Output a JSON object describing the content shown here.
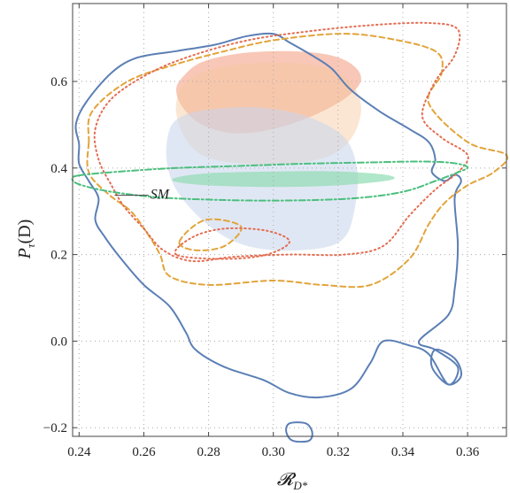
{
  "chart_data": {
    "type": "contour",
    "xlabel": "𝓡",
    "xlabel_sub": "D*",
    "ylabel": "P",
    "ylabel_sub": "τ",
    "ylabel_suffix": "(D)",
    "xlim": [
      0.238,
      0.372
    ],
    "ylim": [
      -0.22,
      0.78
    ],
    "xticks": [
      0.24,
      0.26,
      0.28,
      0.3,
      0.32,
      0.34,
      0.36
    ],
    "yticks": [
      -0.2,
      0.0,
      0.2,
      0.4,
      0.6
    ],
    "xtick_labels": [
      "0.24",
      "0.26",
      "0.28",
      "0.30",
      "0.32",
      "0.34",
      "0.36"
    ],
    "ytick_labels": [
      "−0.2",
      "0.0",
      "0.2",
      "0.4",
      "0.6"
    ],
    "grid": true,
    "annotations": [
      {
        "text": "SM",
        "point": [
          0.251,
          0.337
        ],
        "label_at": [
          0.262,
          0.337
        ]
      }
    ],
    "filled_regions": [
      {
        "color": "#f4a58a",
        "opacity": 0.62,
        "points": [
          [
            0.272,
            0.61
          ],
          [
            0.278,
            0.645
          ],
          [
            0.29,
            0.665
          ],
          [
            0.305,
            0.67
          ],
          [
            0.318,
            0.66
          ],
          [
            0.325,
            0.635
          ],
          [
            0.327,
            0.6
          ],
          [
            0.322,
            0.56
          ],
          [
            0.312,
            0.52
          ],
          [
            0.3,
            0.49
          ],
          [
            0.288,
            0.48
          ],
          [
            0.278,
            0.5
          ],
          [
            0.272,
            0.54
          ],
          [
            0.27,
            0.58
          ]
        ]
      },
      {
        "color": "#f6c89d",
        "opacity": 0.45,
        "points": [
          [
            0.27,
            0.55
          ],
          [
            0.275,
            0.61
          ],
          [
            0.29,
            0.64
          ],
          [
            0.31,
            0.64
          ],
          [
            0.322,
            0.61
          ],
          [
            0.327,
            0.55
          ],
          [
            0.325,
            0.48
          ],
          [
            0.318,
            0.43
          ],
          [
            0.305,
            0.41
          ],
          [
            0.29,
            0.41
          ],
          [
            0.278,
            0.43
          ],
          [
            0.272,
            0.48
          ]
        ]
      },
      {
        "color": "#c9d5ec",
        "opacity": 0.58,
        "points": [
          [
            0.268,
            0.49
          ],
          [
            0.272,
            0.52
          ],
          [
            0.28,
            0.535
          ],
          [
            0.295,
            0.54
          ],
          [
            0.31,
            0.52
          ],
          [
            0.322,
            0.47
          ],
          [
            0.326,
            0.39
          ],
          [
            0.325,
            0.3
          ],
          [
            0.322,
            0.24
          ],
          [
            0.315,
            0.215
          ],
          [
            0.3,
            0.21
          ],
          [
            0.288,
            0.23
          ],
          [
            0.278,
            0.28
          ],
          [
            0.27,
            0.35
          ],
          [
            0.267,
            0.42
          ]
        ]
      },
      {
        "color": "#92dcb4",
        "opacity": 0.72,
        "points": [
          [
            0.27,
            0.378
          ],
          [
            0.28,
            0.388
          ],
          [
            0.3,
            0.392
          ],
          [
            0.32,
            0.392
          ],
          [
            0.335,
            0.384
          ],
          [
            0.336,
            0.372
          ],
          [
            0.32,
            0.36
          ],
          [
            0.3,
            0.356
          ],
          [
            0.28,
            0.36
          ],
          [
            0.27,
            0.368
          ]
        ]
      }
    ],
    "contours": [
      {
        "style": "solid",
        "color": "#5b7fb5",
        "stroke": 2,
        "points": [
          [
            0.24,
            0.455
          ],
          [
            0.239,
            0.5
          ],
          [
            0.242,
            0.55
          ],
          [
            0.25,
            0.62
          ],
          [
            0.258,
            0.655
          ],
          [
            0.27,
            0.67
          ],
          [
            0.282,
            0.685
          ],
          [
            0.292,
            0.705
          ],
          [
            0.3,
            0.71
          ],
          [
            0.305,
            0.69
          ],
          [
            0.312,
            0.66
          ],
          [
            0.318,
            0.63
          ],
          [
            0.324,
            0.58
          ],
          [
            0.333,
            0.53
          ],
          [
            0.342,
            0.49
          ],
          [
            0.348,
            0.46
          ],
          [
            0.35,
            0.42
          ],
          [
            0.349,
            0.39
          ],
          [
            0.353,
            0.37
          ],
          [
            0.356,
            0.385
          ],
          [
            0.358,
            0.37
          ],
          [
            0.356,
            0.33
          ],
          [
            0.357,
            0.22
          ],
          [
            0.356,
            0.12
          ],
          [
            0.354,
            0.06
          ],
          [
            0.345,
            0.0
          ],
          [
            0.35,
            -0.02
          ],
          [
            0.357,
            -0.06
          ],
          [
            0.354,
            -0.1
          ],
          [
            0.348,
            -0.03
          ],
          [
            0.342,
            -0.01
          ],
          [
            0.334,
            0.0
          ],
          [
            0.33,
            -0.05
          ],
          [
            0.324,
            -0.11
          ],
          [
            0.314,
            -0.13
          ],
          [
            0.305,
            -0.12
          ],
          [
            0.297,
            -0.09
          ],
          [
            0.285,
            -0.06
          ],
          [
            0.276,
            -0.02
          ],
          [
            0.273,
            0.02
          ],
          [
            0.268,
            0.08
          ],
          [
            0.26,
            0.13
          ],
          [
            0.253,
            0.19
          ],
          [
            0.248,
            0.24
          ],
          [
            0.245,
            0.28
          ],
          [
            0.246,
            0.33
          ],
          [
            0.243,
            0.37
          ],
          [
            0.24,
            0.41
          ]
        ]
      },
      {
        "style": "solid",
        "color": "#5b7fb5",
        "stroke": 2,
        "points": [
          [
            0.305,
            -0.19
          ],
          [
            0.304,
            -0.21
          ],
          [
            0.306,
            -0.23
          ],
          [
            0.311,
            -0.23
          ],
          [
            0.312,
            -0.21
          ],
          [
            0.31,
            -0.19
          ]
        ]
      },
      {
        "style": "solid",
        "color": "#5b7fb5",
        "stroke": 2,
        "points": [
          [
            0.35,
            -0.02
          ],
          [
            0.356,
            -0.04
          ],
          [
            0.358,
            -0.08
          ],
          [
            0.354,
            -0.1
          ],
          [
            0.349,
            -0.06
          ]
        ]
      },
      {
        "style": "dashed",
        "color": "#e2a43a",
        "stroke": 2,
        "points": [
          [
            0.243,
            0.46
          ],
          [
            0.244,
            0.53
          ],
          [
            0.255,
            0.6
          ],
          [
            0.27,
            0.64
          ],
          [
            0.285,
            0.67
          ],
          [
            0.3,
            0.695
          ],
          [
            0.32,
            0.71
          ],
          [
            0.335,
            0.7
          ],
          [
            0.35,
            0.67
          ],
          [
            0.352,
            0.62
          ],
          [
            0.348,
            0.55
          ],
          [
            0.36,
            0.46
          ],
          [
            0.372,
            0.43
          ],
          [
            0.368,
            0.39
          ],
          [
            0.36,
            0.36
          ],
          [
            0.353,
            0.32
          ],
          [
            0.348,
            0.27
          ],
          [
            0.342,
            0.19
          ],
          [
            0.33,
            0.13
          ],
          [
            0.315,
            0.13
          ],
          [
            0.3,
            0.14
          ],
          [
            0.28,
            0.13
          ],
          [
            0.268,
            0.15
          ],
          [
            0.265,
            0.2
          ],
          [
            0.261,
            0.25
          ],
          [
            0.256,
            0.3
          ],
          [
            0.249,
            0.34
          ],
          [
            0.243,
            0.39
          ]
        ]
      },
      {
        "style": "dashed",
        "color": "#e2a43a",
        "stroke": 2,
        "points": [
          [
            0.271,
            0.23
          ],
          [
            0.279,
            0.28
          ],
          [
            0.29,
            0.265
          ],
          [
            0.285,
            0.22
          ],
          [
            0.276,
            0.21
          ]
        ]
      },
      {
        "style": "dotted",
        "color": "#e36d52",
        "stroke": 2,
        "points": [
          [
            0.245,
            0.49
          ],
          [
            0.25,
            0.56
          ],
          [
            0.262,
            0.62
          ],
          [
            0.275,
            0.66
          ],
          [
            0.292,
            0.695
          ],
          [
            0.31,
            0.715
          ],
          [
            0.33,
            0.73
          ],
          [
            0.348,
            0.735
          ],
          [
            0.357,
            0.72
          ],
          [
            0.356,
            0.66
          ],
          [
            0.35,
            0.6
          ],
          [
            0.346,
            0.52
          ],
          [
            0.352,
            0.47
          ],
          [
            0.36,
            0.43
          ],
          [
            0.357,
            0.39
          ],
          [
            0.35,
            0.35
          ],
          [
            0.342,
            0.29
          ],
          [
            0.334,
            0.22
          ],
          [
            0.322,
            0.2
          ],
          [
            0.305,
            0.2
          ],
          [
            0.288,
            0.195
          ],
          [
            0.275,
            0.185
          ],
          [
            0.266,
            0.21
          ],
          [
            0.26,
            0.26
          ],
          [
            0.254,
            0.31
          ],
          [
            0.25,
            0.36
          ],
          [
            0.246,
            0.42
          ]
        ]
      },
      {
        "style": "dotted",
        "color": "#e36d52",
        "stroke": 2,
        "points": [
          [
            0.27,
            0.2
          ],
          [
            0.275,
            0.24
          ],
          [
            0.285,
            0.26
          ],
          [
            0.298,
            0.255
          ],
          [
            0.305,
            0.23
          ],
          [
            0.298,
            0.2
          ],
          [
            0.285,
            0.19
          ]
        ]
      },
      {
        "style": "dashdot",
        "color": "#4bbf7e",
        "stroke": 2,
        "points": [
          [
            0.24,
            0.383
          ],
          [
            0.255,
            0.393
          ],
          [
            0.27,
            0.4
          ],
          [
            0.29,
            0.405
          ],
          [
            0.31,
            0.41
          ],
          [
            0.33,
            0.413
          ],
          [
            0.345,
            0.415
          ],
          [
            0.355,
            0.412
          ],
          [
            0.36,
            0.402
          ],
          [
            0.357,
            0.39
          ],
          [
            0.35,
            0.37
          ],
          [
            0.34,
            0.345
          ],
          [
            0.325,
            0.33
          ],
          [
            0.305,
            0.325
          ],
          [
            0.285,
            0.326
          ],
          [
            0.265,
            0.332
          ],
          [
            0.25,
            0.345
          ],
          [
            0.241,
            0.36
          ],
          [
            0.238,
            0.372
          ]
        ]
      }
    ],
    "colors": {
      "plot_border": "#444444",
      "grid": "#aaaaaa",
      "sm_line": "#444444"
    }
  }
}
